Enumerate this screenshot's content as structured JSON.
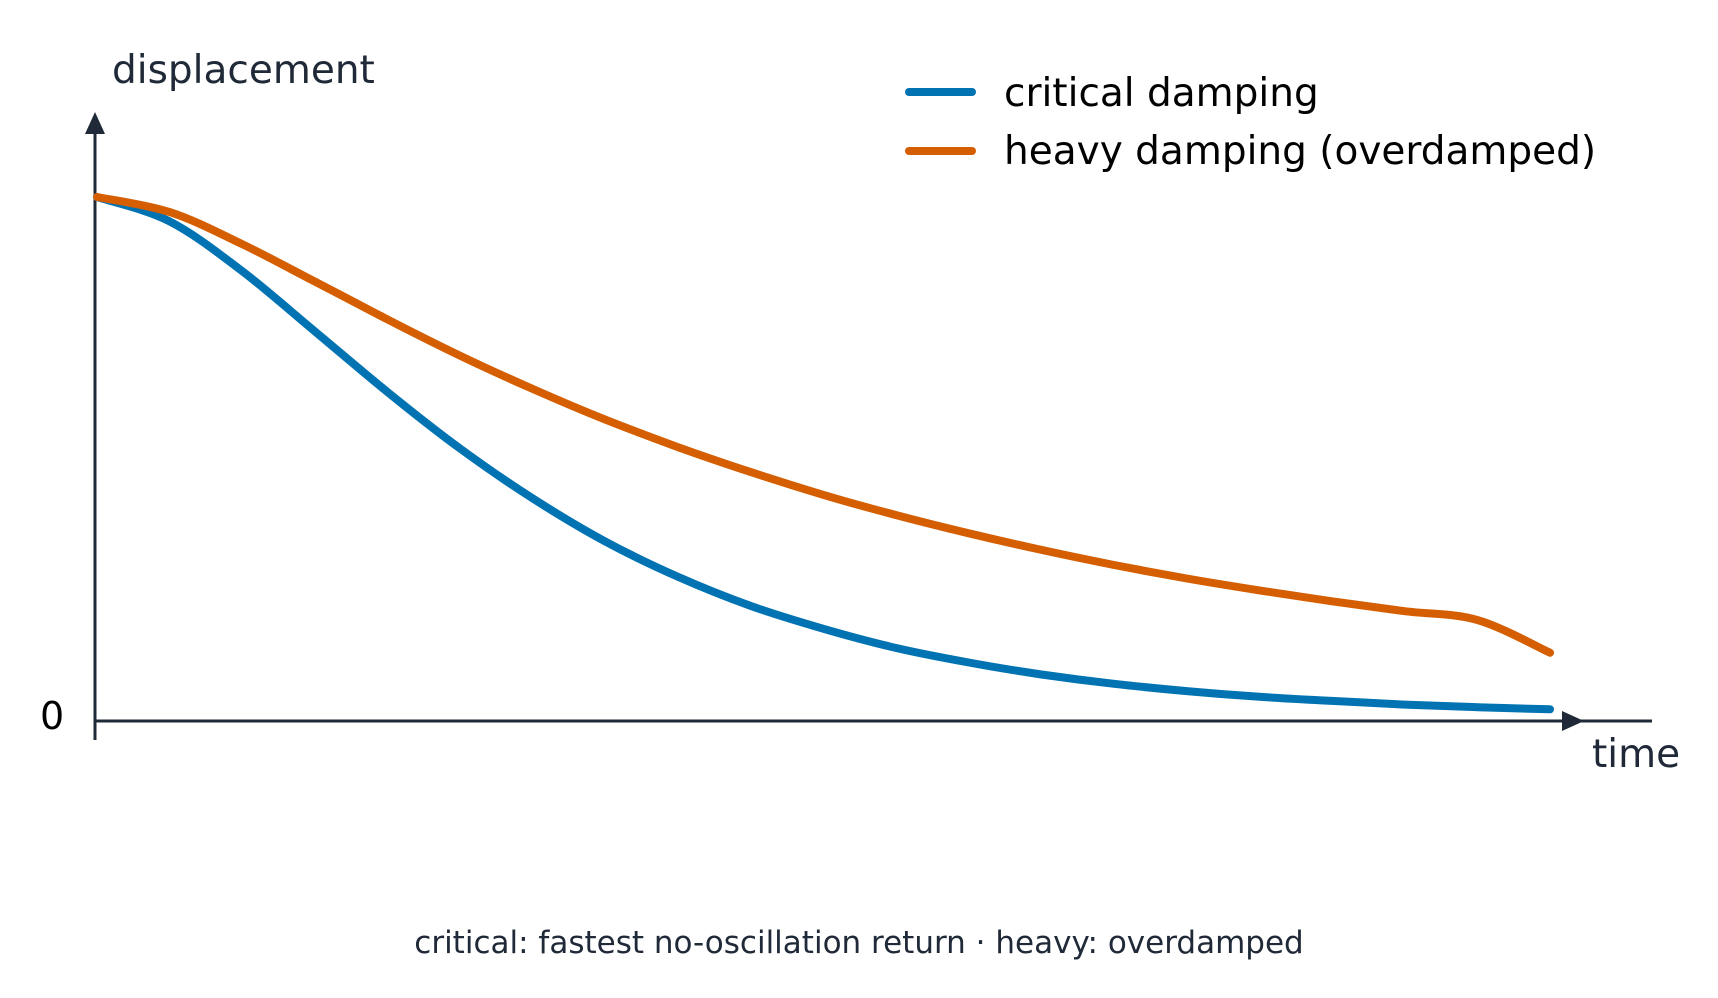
{
  "colors": {
    "critical": "#0173b2",
    "heavy": "#d55e00",
    "axis": "#1f2937"
  },
  "chart_data": {
    "type": "line",
    "title": "",
    "xlabel": "time",
    "ylabel": "displacement",
    "y_ticks": [
      "0"
    ],
    "xlim": [
      0,
      10
    ],
    "ylim": [
      0,
      1
    ],
    "grid": false,
    "legend_position": "top-right",
    "series": [
      {
        "name": "critical damping",
        "color": "#0173b2",
        "x": [
          0,
          0.5,
          1,
          1.5,
          2,
          2.5,
          3,
          3.5,
          4,
          4.5,
          5,
          5.5,
          6,
          6.5,
          7,
          7.5,
          8,
          8.5,
          9,
          9.5,
          10
        ],
        "y": [
          1.0,
          0.953,
          0.857,
          0.741,
          0.624,
          0.515,
          0.419,
          0.336,
          0.268,
          0.212,
          0.168,
          0.131,
          0.103,
          0.08,
          0.062,
          0.048,
          0.037,
          0.029,
          0.022,
          0.017,
          0.013
        ]
      },
      {
        "name": "heavy damping (overdamped)",
        "color": "#d55e00",
        "x": [
          0,
          0.5,
          1,
          1.5,
          2,
          2.5,
          3,
          3.5,
          4,
          4.5,
          5,
          5.5,
          6,
          6.5,
          7,
          7.5,
          8,
          8.5,
          9,
          9.5,
          10
        ],
        "y": [
          1.0,
          0.971,
          0.909,
          0.837,
          0.764,
          0.694,
          0.63,
          0.571,
          0.518,
          0.47,
          0.426,
          0.387,
          0.352,
          0.32,
          0.291,
          0.265,
          0.242,
          0.221,
          0.202,
          0.185,
          0.122
        ]
      }
    ]
  },
  "caption": "critical: fastest no-oscillation return  ·  heavy: overdamped"
}
